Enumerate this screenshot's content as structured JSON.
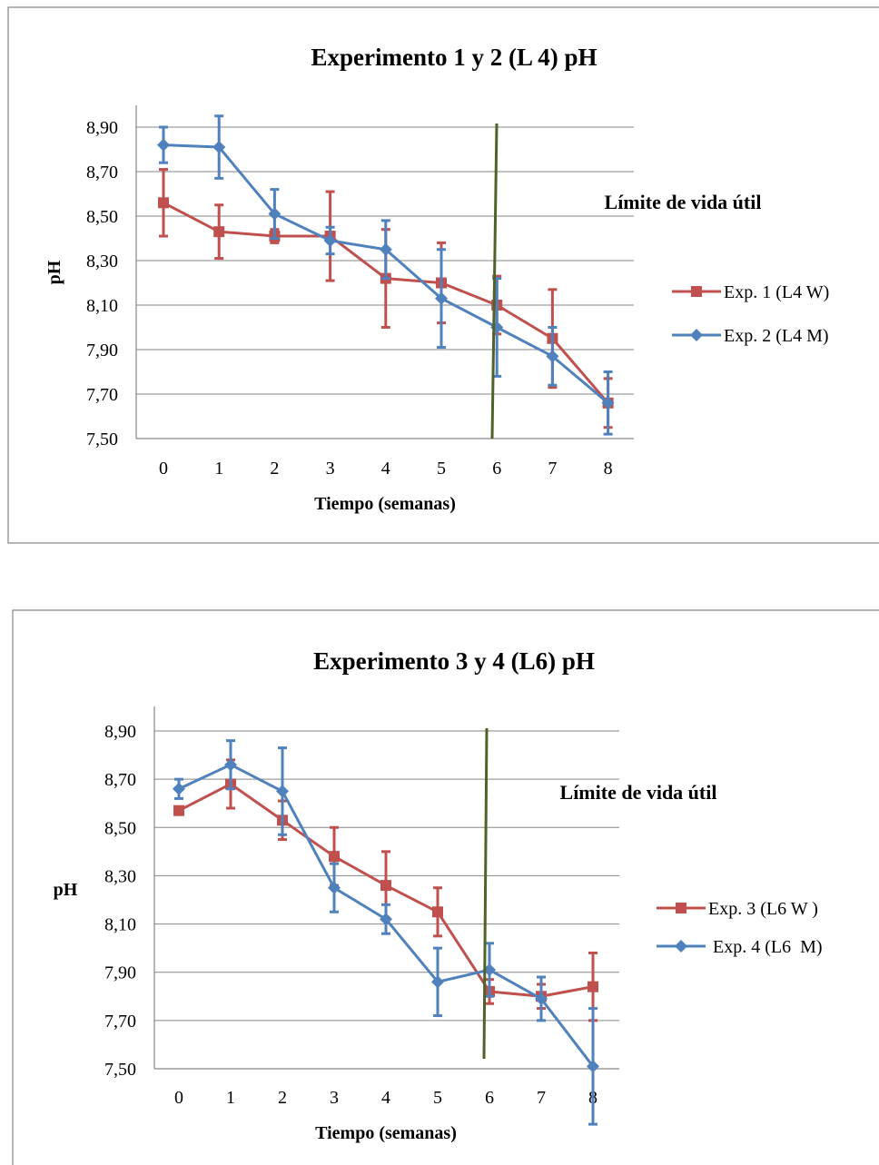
{
  "chart_data": [
    {
      "type": "line",
      "title": "Experimento 1 y 2 (L 4) pH",
      "xlabel": "Tiempo (semanas)",
      "ylabel": "pH",
      "categories": [
        "0",
        "1",
        "2",
        "3",
        "4",
        "5",
        "6",
        "7",
        "8"
      ],
      "ylim": [
        7.5,
        9.1
      ],
      "yticks": [
        "7,50",
        "7,70",
        "7,90",
        "8,10",
        "8,30",
        "8,50",
        "8,70",
        "8,90"
      ],
      "ytick_values": [
        7.5,
        7.7,
        7.9,
        8.1,
        8.3,
        8.5,
        8.7,
        8.9
      ],
      "grid": true,
      "legend": "right",
      "annotation": {
        "text": "Límite de vida útil",
        "x": 6
      },
      "series": [
        {
          "name": "Exp. 1 (L4 W)",
          "color": "#c0504d",
          "marker": "square",
          "values": [
            8.56,
            8.43,
            8.41,
            8.41,
            8.22,
            8.2,
            8.1,
            7.95,
            7.66
          ],
          "error": [
            0.15,
            0.12,
            0.03,
            0.2,
            0.22,
            0.18,
            0.13,
            0.22,
            0.11
          ]
        },
        {
          "name": "Exp. 2 (L4 M)",
          "color": "#4f81bd",
          "marker": "diamond",
          "values": [
            8.82,
            8.81,
            8.51,
            8.39,
            8.35,
            8.13,
            8.0,
            7.87,
            7.66
          ],
          "error": [
            0.08,
            0.14,
            0.11,
            0.06,
            0.13,
            0.22,
            0.22,
            0.13,
            0.14
          ]
        }
      ]
    },
    {
      "type": "line",
      "title": "Experimento 3 y 4 (L6) pH",
      "xlabel": "Tiempo (semanas)",
      "ylabel": "pH",
      "categories": [
        "0",
        "1",
        "2",
        "3",
        "4",
        "5",
        "6",
        "7",
        "8"
      ],
      "ylim": [
        7.5,
        9.1
      ],
      "yticks": [
        "7,50",
        "7,70",
        "7,90",
        "8,10",
        "8,30",
        "8,50",
        "8,70",
        "8,90"
      ],
      "ytick_values": [
        7.5,
        7.7,
        7.9,
        8.1,
        8.3,
        8.5,
        8.7,
        8.9
      ],
      "grid": true,
      "legend": "right",
      "annotation": {
        "text": "Límite de vida útil",
        "x": 6
      },
      "series": [
        {
          "name": "Exp. 3 (L6 W )",
          "color": "#c0504d",
          "marker": "square",
          "values": [
            8.57,
            8.68,
            8.53,
            8.38,
            8.26,
            8.15,
            7.82,
            7.8,
            7.84
          ],
          "error": [
            0.01,
            0.1,
            0.08,
            0.12,
            0.14,
            0.1,
            0.05,
            0.05,
            0.14
          ]
        },
        {
          "name": " Exp. 4 (L6  M)",
          "color": "#4f81bd",
          "marker": "diamond",
          "values": [
            8.66,
            8.76,
            8.65,
            8.25,
            8.12,
            7.86,
            7.91,
            7.79,
            7.51
          ],
          "error": [
            0.04,
            0.1,
            0.18,
            0.1,
            0.06,
            0.14,
            0.11,
            0.09,
            0.24
          ]
        }
      ]
    }
  ]
}
